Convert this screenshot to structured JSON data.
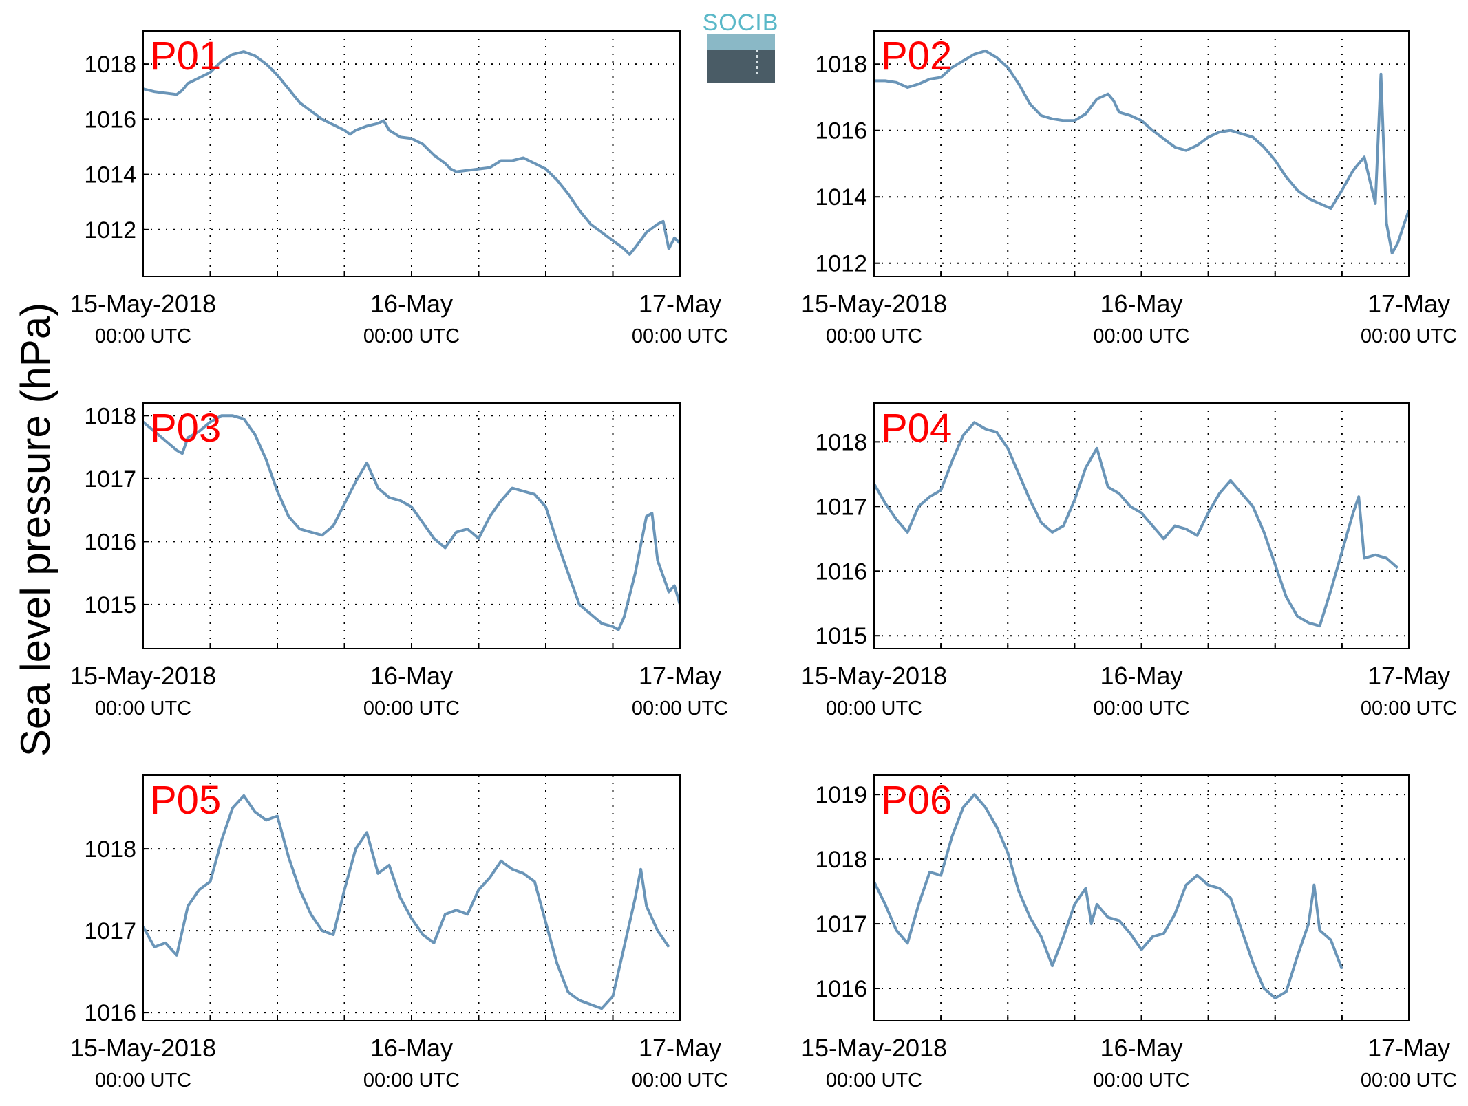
{
  "figure": {
    "ylabel": "Sea level pressure (hPa)",
    "logo_text": "SOCIB",
    "line_color": "#6a95b8",
    "label_color": "#ff0000",
    "xtick_labels": [
      {
        "date": "15-May-2018",
        "time": "00:00 UTC"
      },
      {
        "date": "16-May",
        "time": "00:00 UTC"
      },
      {
        "date": "17-May",
        "time": "00:00 UTC"
      }
    ]
  },
  "chart_data": [
    {
      "type": "line",
      "station": "P01",
      "x_unit": "hours since 15-May-2018 00:00 UTC",
      "xlim": [
        0,
        48
      ],
      "ylim": [
        1010.3,
        1019.2
      ],
      "yticks": [
        1012,
        1014,
        1016,
        1018
      ],
      "grid": true,
      "points": [
        [
          0,
          1017.1
        ],
        [
          1,
          1017.0
        ],
        [
          2,
          1016.95
        ],
        [
          3,
          1016.9
        ],
        [
          3.5,
          1017.05
        ],
        [
          4,
          1017.3
        ],
        [
          5,
          1017.5
        ],
        [
          6,
          1017.7
        ],
        [
          7,
          1018.1
        ],
        [
          8,
          1018.35
        ],
        [
          9,
          1018.45
        ],
        [
          10,
          1018.3
        ],
        [
          11,
          1018.0
        ],
        [
          12,
          1017.6
        ],
        [
          13,
          1017.1
        ],
        [
          14,
          1016.6
        ],
        [
          15,
          1016.3
        ],
        [
          16,
          1016.0
        ],
        [
          17,
          1015.8
        ],
        [
          18,
          1015.6
        ],
        [
          18.5,
          1015.45
        ],
        [
          19,
          1015.6
        ],
        [
          20,
          1015.75
        ],
        [
          21,
          1015.85
        ],
        [
          21.5,
          1015.95
        ],
        [
          22,
          1015.6
        ],
        [
          23,
          1015.35
        ],
        [
          24,
          1015.3
        ],
        [
          25,
          1015.1
        ],
        [
          26,
          1014.7
        ],
        [
          27,
          1014.4
        ],
        [
          27.5,
          1014.2
        ],
        [
          28,
          1014.1
        ],
        [
          29,
          1014.15
        ],
        [
          30,
          1014.2
        ],
        [
          31,
          1014.25
        ],
        [
          32,
          1014.5
        ],
        [
          33,
          1014.5
        ],
        [
          34,
          1014.6
        ],
        [
          35,
          1014.4
        ],
        [
          36,
          1014.2
        ],
        [
          37,
          1013.8
        ],
        [
          38,
          1013.3
        ],
        [
          39,
          1012.7
        ],
        [
          40,
          1012.2
        ],
        [
          41,
          1011.9
        ],
        [
          42,
          1011.6
        ],
        [
          43,
          1011.3
        ],
        [
          43.5,
          1011.1
        ],
        [
          44,
          1011.35
        ],
        [
          45,
          1011.9
        ],
        [
          46,
          1012.2
        ],
        [
          46.5,
          1012.3
        ],
        [
          47,
          1011.3
        ],
        [
          47.5,
          1011.7
        ],
        [
          48,
          1011.5
        ]
      ]
    },
    {
      "type": "line",
      "station": "P02",
      "x_unit": "hours since 15-May-2018 00:00 UTC",
      "xlim": [
        0,
        48
      ],
      "ylim": [
        1011.6,
        1019.0
      ],
      "yticks": [
        1012,
        1014,
        1016,
        1018
      ],
      "grid": true,
      "points": [
        [
          0,
          1017.5
        ],
        [
          1,
          1017.5
        ],
        [
          2,
          1017.45
        ],
        [
          3,
          1017.3
        ],
        [
          4,
          1017.4
        ],
        [
          5,
          1017.55
        ],
        [
          6,
          1017.6
        ],
        [
          7,
          1017.9
        ],
        [
          8,
          1018.1
        ],
        [
          9,
          1018.3
        ],
        [
          10,
          1018.4
        ],
        [
          11,
          1018.2
        ],
        [
          12,
          1017.9
        ],
        [
          13,
          1017.4
        ],
        [
          14,
          1016.8
        ],
        [
          15,
          1016.45
        ],
        [
          16,
          1016.35
        ],
        [
          17,
          1016.3
        ],
        [
          18,
          1016.3
        ],
        [
          19,
          1016.5
        ],
        [
          20,
          1016.95
        ],
        [
          21,
          1017.1
        ],
        [
          21.5,
          1016.9
        ],
        [
          22,
          1016.55
        ],
        [
          23,
          1016.45
        ],
        [
          24,
          1016.3
        ],
        [
          25,
          1016.0
        ],
        [
          26,
          1015.75
        ],
        [
          27,
          1015.5
        ],
        [
          28,
          1015.4
        ],
        [
          29,
          1015.55
        ],
        [
          30,
          1015.8
        ],
        [
          31,
          1015.95
        ],
        [
          32,
          1016.0
        ],
        [
          33,
          1015.9
        ],
        [
          34,
          1015.8
        ],
        [
          35,
          1015.5
        ],
        [
          36,
          1015.1
        ],
        [
          37,
          1014.6
        ],
        [
          38,
          1014.2
        ],
        [
          39,
          1013.95
        ],
        [
          40,
          1013.8
        ],
        [
          41,
          1013.65
        ],
        [
          42,
          1014.2
        ],
        [
          43,
          1014.8
        ],
        [
          44,
          1015.2
        ],
        [
          44.5,
          1014.5
        ],
        [
          45,
          1013.8
        ],
        [
          45.5,
          1017.7
        ],
        [
          46,
          1013.2
        ],
        [
          46.5,
          1012.3
        ],
        [
          47,
          1012.6
        ],
        [
          48,
          1013.6
        ]
      ]
    },
    {
      "type": "line",
      "station": "P03",
      "x_unit": "hours since 15-May-2018 00:00 UTC",
      "xlim": [
        0,
        48
      ],
      "ylim": [
        1014.3,
        1018.2
      ],
      "yticks": [
        1015,
        1016,
        1017,
        1018
      ],
      "grid": true,
      "points": [
        [
          0,
          1017.9
        ],
        [
          1,
          1017.75
        ],
        [
          2,
          1017.6
        ],
        [
          3,
          1017.45
        ],
        [
          3.5,
          1017.4
        ],
        [
          4,
          1017.65
        ],
        [
          5,
          1017.75
        ],
        [
          6,
          1017.9
        ],
        [
          7,
          1018.0
        ],
        [
          8,
          1018.0
        ],
        [
          9,
          1017.95
        ],
        [
          10,
          1017.7
        ],
        [
          11,
          1017.3
        ],
        [
          12,
          1016.8
        ],
        [
          13,
          1016.4
        ],
        [
          14,
          1016.2
        ],
        [
          15,
          1016.15
        ],
        [
          16,
          1016.1
        ],
        [
          17,
          1016.25
        ],
        [
          18,
          1016.6
        ],
        [
          19,
          1016.95
        ],
        [
          20,
          1017.25
        ],
        [
          21,
          1016.85
        ],
        [
          22,
          1016.7
        ],
        [
          23,
          1016.65
        ],
        [
          24,
          1016.55
        ],
        [
          25,
          1016.3
        ],
        [
          26,
          1016.05
        ],
        [
          27,
          1015.9
        ],
        [
          28,
          1016.15
        ],
        [
          29,
          1016.2
        ],
        [
          30,
          1016.05
        ],
        [
          31,
          1016.4
        ],
        [
          32,
          1016.65
        ],
        [
          33,
          1016.85
        ],
        [
          34,
          1016.8
        ],
        [
          35,
          1016.75
        ],
        [
          36,
          1016.55
        ],
        [
          37,
          1016.0
        ],
        [
          38,
          1015.5
        ],
        [
          39,
          1015.0
        ],
        [
          40,
          1014.85
        ],
        [
          41,
          1014.7
        ],
        [
          42,
          1014.65
        ],
        [
          42.5,
          1014.6
        ],
        [
          43,
          1014.8
        ],
        [
          44,
          1015.5
        ],
        [
          45,
          1016.4
        ],
        [
          45.5,
          1016.45
        ],
        [
          46,
          1015.7
        ],
        [
          47,
          1015.2
        ],
        [
          47.5,
          1015.3
        ],
        [
          48,
          1015.0
        ]
      ]
    },
    {
      "type": "line",
      "station": "P04",
      "x_unit": "hours since 15-May-2018 00:00 UTC",
      "xlim": [
        0,
        48
      ],
      "ylim": [
        1014.8,
        1018.6
      ],
      "yticks": [
        1015,
        1016,
        1017,
        1018
      ],
      "grid": true,
      "points": [
        [
          0,
          1017.35
        ],
        [
          1,
          1017.05
        ],
        [
          2,
          1016.8
        ],
        [
          3,
          1016.6
        ],
        [
          4,
          1017.0
        ],
        [
          5,
          1017.15
        ],
        [
          6,
          1017.25
        ],
        [
          7,
          1017.7
        ],
        [
          8,
          1018.1
        ],
        [
          9,
          1018.3
        ],
        [
          10,
          1018.2
        ],
        [
          11,
          1018.15
        ],
        [
          12,
          1017.9
        ],
        [
          13,
          1017.5
        ],
        [
          14,
          1017.1
        ],
        [
          15,
          1016.75
        ],
        [
          16,
          1016.6
        ],
        [
          17,
          1016.7
        ],
        [
          18,
          1017.1
        ],
        [
          19,
          1017.6
        ],
        [
          20,
          1017.9
        ],
        [
          21,
          1017.3
        ],
        [
          22,
          1017.2
        ],
        [
          23,
          1017.0
        ],
        [
          24,
          1016.9
        ],
        [
          25,
          1016.7
        ],
        [
          26,
          1016.5
        ],
        [
          27,
          1016.7
        ],
        [
          28,
          1016.65
        ],
        [
          29,
          1016.55
        ],
        [
          30,
          1016.9
        ],
        [
          31,
          1017.2
        ],
        [
          32,
          1017.4
        ],
        [
          33,
          1017.2
        ],
        [
          34,
          1017.0
        ],
        [
          35,
          1016.6
        ],
        [
          36,
          1016.1
        ],
        [
          37,
          1015.6
        ],
        [
          38,
          1015.3
        ],
        [
          39,
          1015.2
        ],
        [
          40,
          1015.15
        ],
        [
          41,
          1015.7
        ],
        [
          42,
          1016.3
        ],
        [
          43,
          1016.9
        ],
        [
          43.5,
          1017.15
        ],
        [
          44,
          1016.2
        ],
        [
          45,
          1016.25
        ],
        [
          46,
          1016.2
        ],
        [
          47,
          1016.05
        ]
      ]
    },
    {
      "type": "line",
      "station": "P05",
      "x_unit": "hours since 15-May-2018 00:00 UTC",
      "xlim": [
        0,
        48
      ],
      "ylim": [
        1015.9,
        1018.9
      ],
      "yticks": [
        1016,
        1017,
        1018
      ],
      "grid": true,
      "points": [
        [
          0,
          1017.05
        ],
        [
          1,
          1016.8
        ],
        [
          2,
          1016.85
        ],
        [
          3,
          1016.7
        ],
        [
          4,
          1017.3
        ],
        [
          5,
          1017.5
        ],
        [
          6,
          1017.6
        ],
        [
          7,
          1018.1
        ],
        [
          8,
          1018.5
        ],
        [
          9,
          1018.65
        ],
        [
          10,
          1018.45
        ],
        [
          11,
          1018.35
        ],
        [
          12,
          1018.4
        ],
        [
          13,
          1017.9
        ],
        [
          14,
          1017.5
        ],
        [
          15,
          1017.2
        ],
        [
          16,
          1017.0
        ],
        [
          17,
          1016.95
        ],
        [
          18,
          1017.5
        ],
        [
          19,
          1018.0
        ],
        [
          20,
          1018.2
        ],
        [
          21,
          1017.7
        ],
        [
          22,
          1017.8
        ],
        [
          23,
          1017.4
        ],
        [
          24,
          1017.15
        ],
        [
          25,
          1016.95
        ],
        [
          26,
          1016.85
        ],
        [
          27,
          1017.2
        ],
        [
          28,
          1017.25
        ],
        [
          29,
          1017.2
        ],
        [
          30,
          1017.5
        ],
        [
          31,
          1017.65
        ],
        [
          32,
          1017.85
        ],
        [
          33,
          1017.75
        ],
        [
          34,
          1017.7
        ],
        [
          35,
          1017.6
        ],
        [
          36,
          1017.1
        ],
        [
          37,
          1016.6
        ],
        [
          38,
          1016.25
        ],
        [
          39,
          1016.15
        ],
        [
          40,
          1016.1
        ],
        [
          41,
          1016.05
        ],
        [
          42,
          1016.2
        ],
        [
          43,
          1016.8
        ],
        [
          44,
          1017.4
        ],
        [
          44.5,
          1017.75
        ],
        [
          45,
          1017.3
        ],
        [
          46,
          1017.0
        ],
        [
          47,
          1016.8
        ]
      ]
    },
    {
      "type": "line",
      "station": "P06",
      "x_unit": "hours since 15-May-2018 00:00 UTC",
      "xlim": [
        0,
        48
      ],
      "ylim": [
        1015.5,
        1019.3
      ],
      "yticks": [
        1016,
        1017,
        1018,
        1019
      ],
      "grid": true,
      "points": [
        [
          0,
          1017.65
        ],
        [
          1,
          1017.3
        ],
        [
          2,
          1016.9
        ],
        [
          3,
          1016.7
        ],
        [
          4,
          1017.3
        ],
        [
          5,
          1017.8
        ],
        [
          6,
          1017.75
        ],
        [
          7,
          1018.35
        ],
        [
          8,
          1018.8
        ],
        [
          9,
          1019.0
        ],
        [
          10,
          1018.8
        ],
        [
          11,
          1018.5
        ],
        [
          12,
          1018.1
        ],
        [
          13,
          1017.5
        ],
        [
          14,
          1017.1
        ],
        [
          15,
          1016.8
        ],
        [
          16,
          1016.35
        ],
        [
          17,
          1016.8
        ],
        [
          18,
          1017.3
        ],
        [
          19,
          1017.55
        ],
        [
          19.5,
          1017.0
        ],
        [
          20,
          1017.3
        ],
        [
          21,
          1017.1
        ],
        [
          22,
          1017.05
        ],
        [
          23,
          1016.85
        ],
        [
          24,
          1016.6
        ],
        [
          25,
          1016.8
        ],
        [
          26,
          1016.85
        ],
        [
          27,
          1017.15
        ],
        [
          28,
          1017.6
        ],
        [
          29,
          1017.75
        ],
        [
          30,
          1017.6
        ],
        [
          31,
          1017.55
        ],
        [
          32,
          1017.4
        ],
        [
          33,
          1016.9
        ],
        [
          34,
          1016.4
        ],
        [
          35,
          1016.0
        ],
        [
          36,
          1015.85
        ],
        [
          37,
          1015.95
        ],
        [
          38,
          1016.5
        ],
        [
          39,
          1017.0
        ],
        [
          39.5,
          1017.6
        ],
        [
          40,
          1016.9
        ],
        [
          41,
          1016.75
        ],
        [
          42,
          1016.3
        ]
      ]
    }
  ]
}
